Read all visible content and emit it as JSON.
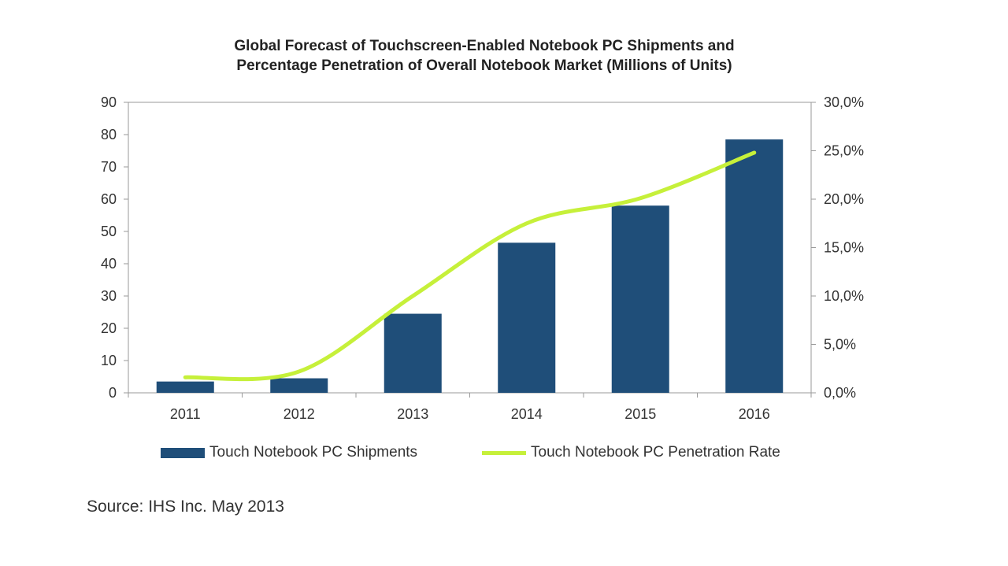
{
  "chart_data": {
    "type": "bar",
    "title_lines": [
      "Global Forecast of Touchscreen-Enabled Notebook PC Shipments and",
      "Percentage Penetration of Overall Notebook Market (Millions of Units)"
    ],
    "categories": [
      "2011",
      "2012",
      "2013",
      "2014",
      "2015",
      "2016"
    ],
    "series": [
      {
        "name": "Touch Notebook PC Shipments",
        "type": "bar",
        "axis": "left",
        "values": [
          3.5,
          4.5,
          24.5,
          46.5,
          58,
          78.5
        ]
      },
      {
        "name": "Touch Notebook PC Penetration Rate",
        "type": "line",
        "axis": "right",
        "values": [
          1.6,
          2.2,
          10.0,
          17.5,
          20.1,
          24.8
        ]
      }
    ],
    "ylim": [
      0,
      90
    ],
    "y_ticks": [
      "0",
      "10",
      "20",
      "30",
      "40",
      "50",
      "60",
      "70",
      "80",
      "90"
    ],
    "y2lim": [
      0,
      30
    ],
    "y2_ticks": [
      "0,0%",
      "5,0%",
      "10,0%",
      "15,0%",
      "20,0%",
      "25,0%",
      "30,0%"
    ],
    "grid": false,
    "legend_position": "bottom",
    "colors": {
      "bar": "#1f4e79",
      "line": "#c6f03a",
      "axis": "#9a9a9a"
    }
  },
  "source": "Source: IHS Inc. May 2013"
}
